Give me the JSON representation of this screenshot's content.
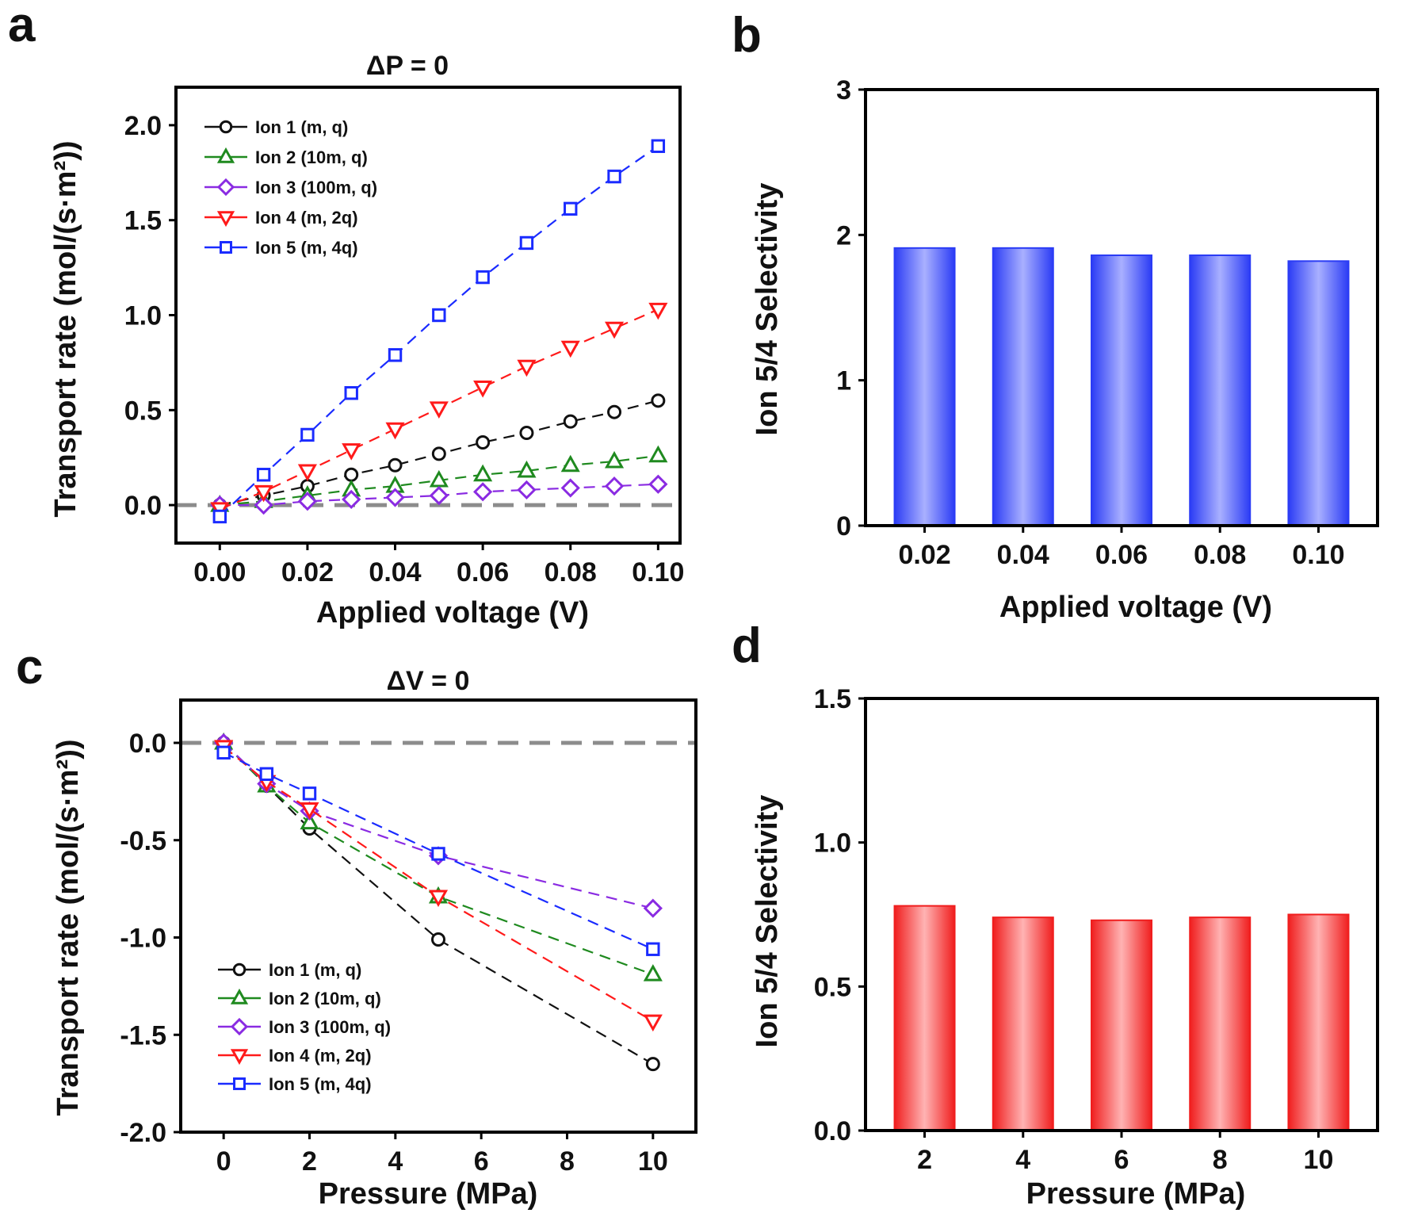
{
  "colors": {
    "ion1": "#111111",
    "ion2": "#1f8a1f",
    "ion3": "#8a2be2",
    "ion4": "#ff1a1a",
    "ion5": "#1a2bff",
    "zero_line": "#8c8c8c",
    "bar_blue": "#2b3cf5",
    "bar_red": "#f01e1e"
  },
  "chart_data": [
    {
      "panel": "a",
      "type": "line",
      "title_prefix": "ΔP",
      "title_suffix": " = 0",
      "xlabel": "Applied voltage (V)",
      "ylabel": "Transport rate (mol/(s·m²))",
      "xlim": [
        -0.01,
        0.105
      ],
      "ylim": [
        -0.2,
        2.2
      ],
      "xticks": [
        "0.00",
        "0.02",
        "0.04",
        "0.06",
        "0.08",
        "0.10"
      ],
      "yticks": [
        "0.0",
        "0.5",
        "1.0",
        "1.5",
        "2.0"
      ],
      "zero_line": true,
      "legend": "top-left",
      "x": [
        0,
        0.01,
        0.02,
        0.03,
        0.04,
        0.05,
        0.06,
        0.07,
        0.08,
        0.09,
        0.1
      ],
      "series": [
        {
          "name": "Ion 1 (m, q)",
          "marker": "circle",
          "values": [
            0.0,
            0.05,
            0.1,
            0.16,
            0.21,
            0.27,
            0.33,
            0.38,
            0.44,
            0.49,
            0.55
          ]
        },
        {
          "name": "Ion 2 (10m, q)",
          "marker": "triangle-up",
          "values": [
            0.0,
            0.02,
            0.05,
            0.08,
            0.1,
            0.13,
            0.16,
            0.18,
            0.21,
            0.23,
            0.26
          ]
        },
        {
          "name": "Ion 3 (100m, q)",
          "marker": "diamond",
          "values": [
            0.0,
            0.0,
            0.02,
            0.03,
            0.04,
            0.05,
            0.07,
            0.08,
            0.09,
            0.1,
            0.11
          ]
        },
        {
          "name": "Ion 4 (m, 2q)",
          "marker": "triangle-down",
          "values": [
            -0.02,
            0.07,
            0.18,
            0.29,
            0.4,
            0.51,
            0.62,
            0.73,
            0.83,
            0.93,
            1.03
          ]
        },
        {
          "name": "Ion 5 (m, 4q)",
          "marker": "square",
          "values": [
            -0.06,
            0.16,
            0.37,
            0.59,
            0.79,
            1.0,
            1.2,
            1.38,
            1.56,
            1.73,
            1.89
          ]
        }
      ]
    },
    {
      "panel": "b",
      "type": "bar",
      "xlabel": "Applied voltage (V)",
      "ylabel": "Ion 5/4 Selectivity",
      "ylim": [
        0,
        3
      ],
      "yticks": [
        "0",
        "1",
        "2",
        "3"
      ],
      "categories": [
        "0.02",
        "0.04",
        "0.06",
        "0.08",
        "0.10"
      ],
      "values": [
        1.91,
        1.91,
        1.86,
        1.86,
        1.82
      ]
    },
    {
      "panel": "c",
      "type": "line",
      "title_prefix": "ΔV",
      "title_suffix": " = 0",
      "xlabel": "Pressure (MPa)",
      "ylabel": "Transport rate (mol/(s·m²))",
      "xlim": [
        -1,
        11
      ],
      "ylim": [
        -2.0,
        0.22
      ],
      "xticks": [
        "0",
        "2",
        "4",
        "6",
        "8",
        "10"
      ],
      "yticks": [
        "0.0",
        "-0.5",
        "-1.0",
        "-1.5",
        "-2.0"
      ],
      "zero_line": true,
      "legend": "bottom-left",
      "x": [
        0,
        1,
        2,
        5,
        10
      ],
      "series": [
        {
          "name": "Ion 1 (m, q)",
          "marker": "circle",
          "values": [
            0.0,
            -0.22,
            -0.44,
            -1.01,
            -1.65
          ]
        },
        {
          "name": "Ion 2 (10m, q)",
          "marker": "triangle-up",
          "values": [
            0.0,
            -0.22,
            -0.41,
            -0.79,
            -1.19
          ]
        },
        {
          "name": "Ion 3 (100m, q)",
          "marker": "diamond",
          "values": [
            0.0,
            -0.21,
            -0.35,
            -0.58,
            -0.85
          ]
        },
        {
          "name": "Ion 4 (m, 2q)",
          "marker": "triangle-down",
          "values": [
            -0.02,
            -0.2,
            -0.34,
            -0.79,
            -1.43
          ]
        },
        {
          "name": "Ion 5 (m, 4q)",
          "marker": "square",
          "values": [
            -0.05,
            -0.16,
            -0.26,
            -0.57,
            -1.06
          ]
        }
      ]
    },
    {
      "panel": "d",
      "type": "bar",
      "xlabel": "Pressure (MPa)",
      "ylabel": "Ion 5/4 Selectivity",
      "ylim": [
        0,
        1.5
      ],
      "yticks": [
        "0.0",
        "0.5",
        "1.0",
        "1.5"
      ],
      "categories": [
        "2",
        "4",
        "6",
        "8",
        "10"
      ],
      "values": [
        0.78,
        0.74,
        0.73,
        0.74,
        0.75
      ]
    }
  ]
}
